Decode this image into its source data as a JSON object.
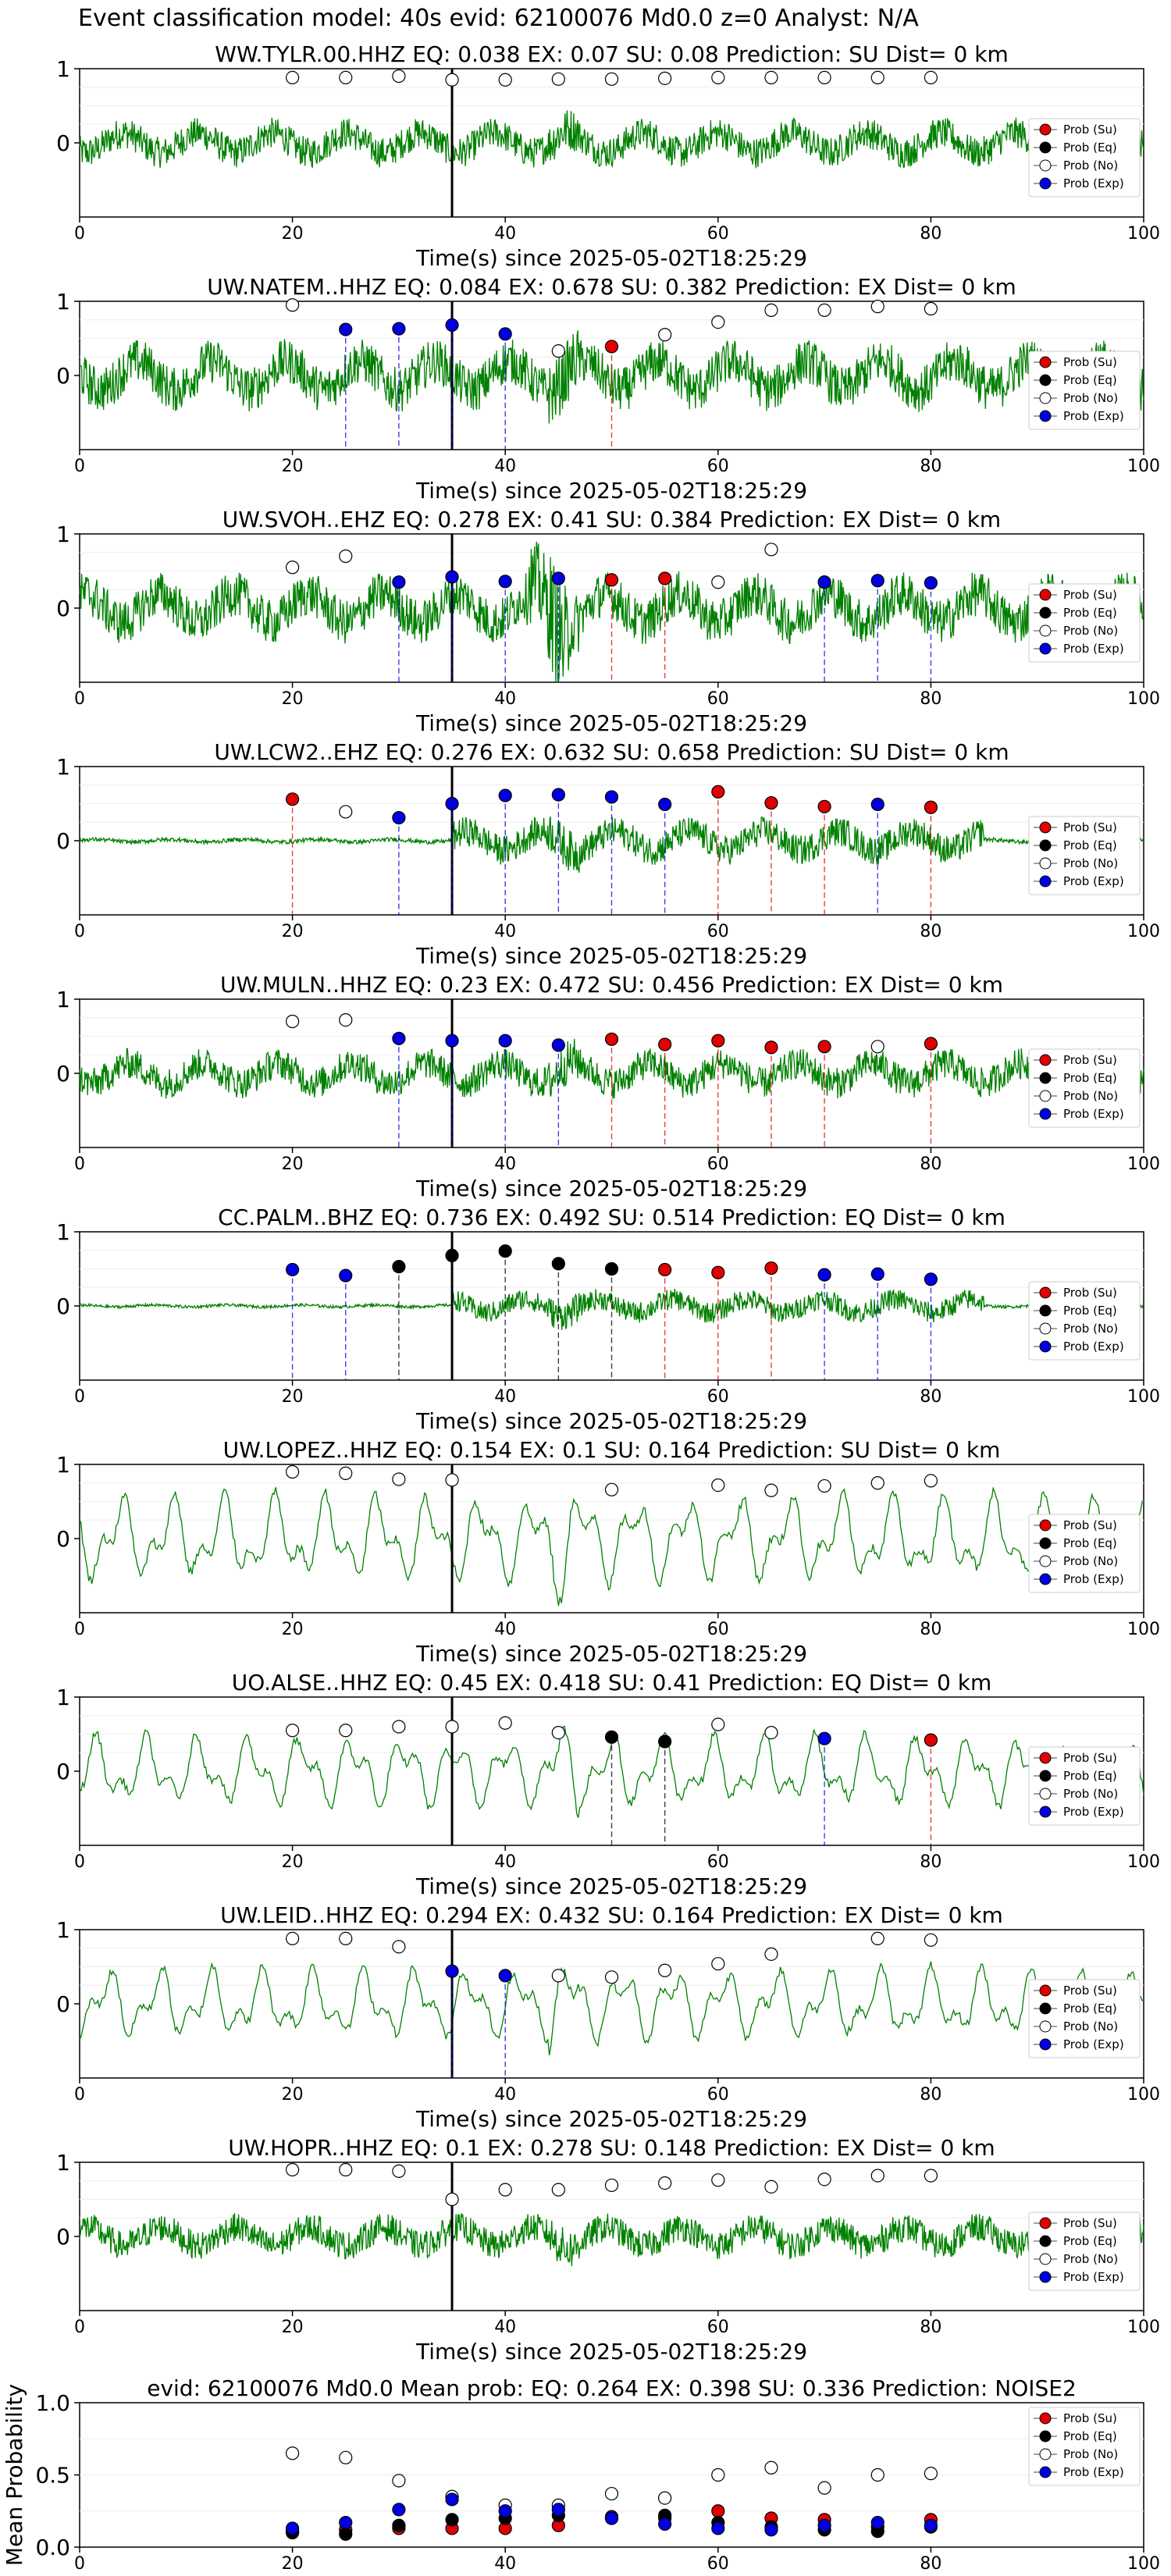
{
  "figure_title": "Event classification model: 40s evid: 62100076 Md0.0 z=0 Analyst: N/A",
  "legend": {
    "items": [
      {
        "label": "Prob (Su)",
        "color": "#e00000",
        "filled": true
      },
      {
        "label": "Prob (Eq)",
        "color": "#000000",
        "filled": true
      },
      {
        "label": "Prob (No)",
        "color": "#ffffff",
        "filled": false
      },
      {
        "label": "Prob (Exp)",
        "color": "#0000e0",
        "filled": true
      }
    ]
  },
  "colors": {
    "waveform": "#008000",
    "su": "#e00000",
    "eq": "#000000",
    "no": "#ffffff",
    "exp": "#0000e0",
    "origin_line": "#000000"
  },
  "chart_data": [
    {
      "type": "line",
      "title": "WW.TYLR.00.HHZ   EQ: 0.038  EX: 0.07  SU: 0.08   Prediction: SU    Dist= 0 km",
      "xlabel": "Time(s) since 2025-05-02T18:25:29",
      "xlim": [
        0,
        100
      ],
      "ylim": [
        -1,
        1
      ],
      "xticks": [
        0,
        20,
        40,
        60,
        80,
        100
      ],
      "yticks": [
        1,
        0
      ],
      "origin_time": 35,
      "waveform": {
        "amplitude": 0.38,
        "character": "broadband"
      },
      "points": [
        {
          "t": 20,
          "class": "no",
          "p": 0.88
        },
        {
          "t": 25,
          "class": "no",
          "p": 0.88
        },
        {
          "t": 30,
          "class": "no",
          "p": 0.9
        },
        {
          "t": 35,
          "class": "no",
          "p": 0.85
        },
        {
          "t": 40,
          "class": "no",
          "p": 0.85
        },
        {
          "t": 45,
          "class": "no",
          "p": 0.86
        },
        {
          "t": 50,
          "class": "no",
          "p": 0.86
        },
        {
          "t": 55,
          "class": "no",
          "p": 0.87
        },
        {
          "t": 60,
          "class": "no",
          "p": 0.88
        },
        {
          "t": 65,
          "class": "no",
          "p": 0.88
        },
        {
          "t": 70,
          "class": "no",
          "p": 0.88
        },
        {
          "t": 75,
          "class": "no",
          "p": 0.88
        },
        {
          "t": 80,
          "class": "no",
          "p": 0.88
        }
      ]
    },
    {
      "type": "line",
      "title": "UW.NATEM..HHZ   EQ: 0.084  EX: 0.678  SU: 0.382   Prediction: EX    Dist= 0 km",
      "xlabel": "Time(s) since 2025-05-02T18:25:29",
      "xlim": [
        0,
        100
      ],
      "ylim": [
        -1,
        1
      ],
      "xticks": [
        0,
        20,
        40,
        60,
        80,
        100
      ],
      "yticks": [
        1,
        0
      ],
      "origin_time": 35,
      "waveform": {
        "amplitude": 0.55,
        "character": "broadband"
      },
      "points": [
        {
          "t": 20,
          "class": "no",
          "p": 0.95
        },
        {
          "t": 25,
          "class": "exp",
          "p": 0.62
        },
        {
          "t": 30,
          "class": "exp",
          "p": 0.63
        },
        {
          "t": 35,
          "class": "exp",
          "p": 0.68
        },
        {
          "t": 40,
          "class": "exp",
          "p": 0.56
        },
        {
          "t": 45,
          "class": "no",
          "p": 0.33
        },
        {
          "t": 50,
          "class": "su",
          "p": 0.39
        },
        {
          "t": 55,
          "class": "no",
          "p": 0.55
        },
        {
          "t": 60,
          "class": "no",
          "p": 0.72
        },
        {
          "t": 65,
          "class": "no",
          "p": 0.88
        },
        {
          "t": 70,
          "class": "no",
          "p": 0.88
        },
        {
          "t": 75,
          "class": "no",
          "p": 0.93
        },
        {
          "t": 80,
          "class": "no",
          "p": 0.9
        }
      ]
    },
    {
      "type": "line",
      "title": "UW.SVOH..EHZ   EQ: 0.278  EX: 0.41  SU: 0.384   Prediction: EX    Dist= 0 km",
      "xlabel": "Time(s) since 2025-05-02T18:25:29",
      "xlim": [
        0,
        100
      ],
      "ylim": [
        -1,
        1
      ],
      "xticks": [
        0,
        20,
        40,
        60,
        80,
        100
      ],
      "yticks": [
        1,
        0
      ],
      "origin_time": 35,
      "waveform": {
        "amplitude": 0.55,
        "character": "spiky"
      },
      "points": [
        {
          "t": 20,
          "class": "no",
          "p": 0.55
        },
        {
          "t": 25,
          "class": "no",
          "p": 0.7
        },
        {
          "t": 30,
          "class": "exp",
          "p": 0.35
        },
        {
          "t": 35,
          "class": "exp",
          "p": 0.42
        },
        {
          "t": 40,
          "class": "exp",
          "p": 0.36
        },
        {
          "t": 45,
          "class": "exp",
          "p": 0.4
        },
        {
          "t": 50,
          "class": "su",
          "p": 0.38
        },
        {
          "t": 55,
          "class": "su",
          "p": 0.4
        },
        {
          "t": 60,
          "class": "no",
          "p": 0.35
        },
        {
          "t": 65,
          "class": "no",
          "p": 0.79
        },
        {
          "t": 70,
          "class": "exp",
          "p": 0.35
        },
        {
          "t": 75,
          "class": "exp",
          "p": 0.37
        },
        {
          "t": 80,
          "class": "exp",
          "p": 0.34
        }
      ]
    },
    {
      "type": "line",
      "title": "UW.LCW2..EHZ   EQ: 0.276  EX: 0.632  SU: 0.658   Prediction: SU    Dist= 0 km",
      "xlabel": "Time(s) since 2025-05-02T18:25:29",
      "xlim": [
        0,
        100
      ],
      "ylim": [
        -1,
        1
      ],
      "xticks": [
        0,
        20,
        40,
        60,
        80,
        100
      ],
      "yticks": [
        1,
        0
      ],
      "origin_time": 35,
      "waveform": {
        "amplitude": 0.14,
        "character": "quiet"
      },
      "points": [
        {
          "t": 20,
          "class": "su",
          "p": 0.56
        },
        {
          "t": 25,
          "class": "no",
          "p": 0.39
        },
        {
          "t": 30,
          "class": "exp",
          "p": 0.31
        },
        {
          "t": 35,
          "class": "exp",
          "p": 0.5
        },
        {
          "t": 40,
          "class": "exp",
          "p": 0.61
        },
        {
          "t": 45,
          "class": "exp",
          "p": 0.62
        },
        {
          "t": 50,
          "class": "exp",
          "p": 0.59
        },
        {
          "t": 55,
          "class": "exp",
          "p": 0.49
        },
        {
          "t": 60,
          "class": "su",
          "p": 0.66
        },
        {
          "t": 65,
          "class": "su",
          "p": 0.51
        },
        {
          "t": 70,
          "class": "su",
          "p": 0.46
        },
        {
          "t": 75,
          "class": "exp",
          "p": 0.49
        },
        {
          "t": 80,
          "class": "su",
          "p": 0.45
        }
      ]
    },
    {
      "type": "line",
      "title": "UW.MULN..HHZ   EQ: 0.23  EX: 0.472  SU: 0.456   Prediction: EX    Dist= 0 km",
      "xlabel": "Time(s) since 2025-05-02T18:25:29",
      "xlim": [
        0,
        100
      ],
      "ylim": [
        -1,
        1
      ],
      "xticks": [
        0,
        20,
        40,
        60,
        80,
        100
      ],
      "yticks": [
        1,
        0
      ],
      "origin_time": 35,
      "waveform": {
        "amplitude": 0.38,
        "character": "broadband"
      },
      "points": [
        {
          "t": 20,
          "class": "no",
          "p": 0.7
        },
        {
          "t": 25,
          "class": "no",
          "p": 0.72
        },
        {
          "t": 30,
          "class": "exp",
          "p": 0.47
        },
        {
          "t": 35,
          "class": "exp",
          "p": 0.44
        },
        {
          "t": 40,
          "class": "exp",
          "p": 0.44
        },
        {
          "t": 45,
          "class": "exp",
          "p": 0.38
        },
        {
          "t": 50,
          "class": "su",
          "p": 0.46
        },
        {
          "t": 55,
          "class": "su",
          "p": 0.39
        },
        {
          "t": 60,
          "class": "su",
          "p": 0.44
        },
        {
          "t": 65,
          "class": "su",
          "p": 0.35
        },
        {
          "t": 70,
          "class": "su",
          "p": 0.36
        },
        {
          "t": 75,
          "class": "no",
          "p": 0.36
        },
        {
          "t": 80,
          "class": "su",
          "p": 0.4
        }
      ]
    },
    {
      "type": "line",
      "title": "CC.PALM..BHZ   EQ: 0.736  EX: 0.492  SU: 0.514   Prediction: EQ    Dist= 0 km",
      "xlabel": "Time(s) since 2025-05-02T18:25:29",
      "xlim": [
        0,
        100
      ],
      "ylim": [
        -1,
        1
      ],
      "xticks": [
        0,
        20,
        40,
        60,
        80,
        100
      ],
      "yticks": [
        1,
        0
      ],
      "origin_time": 35,
      "waveform": {
        "amplitude": 0.1,
        "character": "quiet"
      },
      "points": [
        {
          "t": 20,
          "class": "exp",
          "p": 0.49
        },
        {
          "t": 25,
          "class": "exp",
          "p": 0.41
        },
        {
          "t": 30,
          "class": "eq",
          "p": 0.53
        },
        {
          "t": 35,
          "class": "eq",
          "p": 0.68
        },
        {
          "t": 40,
          "class": "eq",
          "p": 0.74
        },
        {
          "t": 45,
          "class": "eq",
          "p": 0.57
        },
        {
          "t": 50,
          "class": "eq",
          "p": 0.5
        },
        {
          "t": 55,
          "class": "su",
          "p": 0.49
        },
        {
          "t": 60,
          "class": "su",
          "p": 0.45
        },
        {
          "t": 65,
          "class": "su",
          "p": 0.51
        },
        {
          "t": 70,
          "class": "exp",
          "p": 0.42
        },
        {
          "t": 75,
          "class": "exp",
          "p": 0.43
        },
        {
          "t": 80,
          "class": "exp",
          "p": 0.36
        }
      ]
    },
    {
      "type": "line",
      "title": "UW.LOPEZ..HHZ   EQ: 0.154  EX: 0.1  SU: 0.164   Prediction: SU    Dist= 0 km",
      "xlabel": "Time(s) since 2025-05-02T18:25:29",
      "xlim": [
        0,
        100
      ],
      "ylim": [
        -1,
        1
      ],
      "xticks": [
        0,
        20,
        40,
        60,
        80,
        100
      ],
      "yticks": [
        1,
        0
      ],
      "origin_time": 35,
      "waveform": {
        "amplitude": 0.55,
        "character": "smooth"
      },
      "points": [
        {
          "t": 20,
          "class": "no",
          "p": 0.9
        },
        {
          "t": 25,
          "class": "no",
          "p": 0.88
        },
        {
          "t": 30,
          "class": "no",
          "p": 0.8
        },
        {
          "t": 35,
          "class": "no",
          "p": 0.79
        },
        {
          "t": 50,
          "class": "no",
          "p": 0.66
        },
        {
          "t": 60,
          "class": "no",
          "p": 0.72
        },
        {
          "t": 65,
          "class": "no",
          "p": 0.65
        },
        {
          "t": 70,
          "class": "no",
          "p": 0.71
        },
        {
          "t": 75,
          "class": "no",
          "p": 0.75
        },
        {
          "t": 80,
          "class": "no",
          "p": 0.78
        }
      ]
    },
    {
      "type": "line",
      "title": "UO.ALSE..HHZ   EQ: 0.45  EX: 0.418  SU: 0.41   Prediction: EQ    Dist= 0 km",
      "xlabel": "Time(s) since 2025-05-02T18:25:29",
      "xlim": [
        0,
        100
      ],
      "ylim": [
        -1,
        1
      ],
      "xticks": [
        0,
        20,
        40,
        60,
        80,
        100
      ],
      "yticks": [
        1,
        0
      ],
      "origin_time": 35,
      "waveform": {
        "amplitude": 0.45,
        "character": "smooth"
      },
      "points": [
        {
          "t": 20,
          "class": "no",
          "p": 0.55
        },
        {
          "t": 25,
          "class": "no",
          "p": 0.55
        },
        {
          "t": 30,
          "class": "no",
          "p": 0.6
        },
        {
          "t": 35,
          "class": "no",
          "p": 0.6
        },
        {
          "t": 40,
          "class": "no",
          "p": 0.65
        },
        {
          "t": 45,
          "class": "no",
          "p": 0.52
        },
        {
          "t": 50,
          "class": "eq",
          "p": 0.46
        },
        {
          "t": 55,
          "class": "eq",
          "p": 0.4
        },
        {
          "t": 60,
          "class": "no",
          "p": 0.63
        },
        {
          "t": 65,
          "class": "no",
          "p": 0.52
        },
        {
          "t": 70,
          "class": "exp",
          "p": 0.44
        },
        {
          "t": 80,
          "class": "su",
          "p": 0.42
        }
      ]
    },
    {
      "type": "line",
      "title": "UW.LEID..HHZ   EQ: 0.294  EX: 0.432  SU: 0.164   Prediction: EX    Dist= 0 km",
      "xlabel": "Time(s) since 2025-05-02T18:25:29",
      "xlim": [
        0,
        100
      ],
      "ylim": [
        -1,
        1
      ],
      "xticks": [
        0,
        20,
        40,
        60,
        80,
        100
      ],
      "yticks": [
        1,
        0
      ],
      "origin_time": 35,
      "waveform": {
        "amplitude": 0.45,
        "character": "smooth"
      },
      "points": [
        {
          "t": 20,
          "class": "no",
          "p": 0.88
        },
        {
          "t": 25,
          "class": "no",
          "p": 0.88
        },
        {
          "t": 30,
          "class": "no",
          "p": 0.77
        },
        {
          "t": 35,
          "class": "exp",
          "p": 0.44
        },
        {
          "t": 40,
          "class": "exp",
          "p": 0.38
        },
        {
          "t": 45,
          "class": "no",
          "p": 0.38
        },
        {
          "t": 50,
          "class": "no",
          "p": 0.36
        },
        {
          "t": 55,
          "class": "no",
          "p": 0.45
        },
        {
          "t": 60,
          "class": "no",
          "p": 0.54
        },
        {
          "t": 65,
          "class": "no",
          "p": 0.67
        },
        {
          "t": 75,
          "class": "no",
          "p": 0.88
        },
        {
          "t": 80,
          "class": "no",
          "p": 0.86
        }
      ]
    },
    {
      "type": "line",
      "title": "UW.HOPR..HHZ   EQ: 0.1  EX: 0.278  SU: 0.148   Prediction: EX    Dist= 0 km",
      "xlabel": "Time(s) since 2025-05-02T18:25:29",
      "xlim": [
        0,
        100
      ],
      "ylim": [
        -1,
        1
      ],
      "xticks": [
        0,
        20,
        40,
        60,
        80,
        100
      ],
      "yticks": [
        1,
        0
      ],
      "origin_time": 35,
      "waveform": {
        "amplitude": 0.35,
        "character": "broadband"
      },
      "points": [
        {
          "t": 20,
          "class": "no",
          "p": 0.9
        },
        {
          "t": 25,
          "class": "no",
          "p": 0.9
        },
        {
          "t": 30,
          "class": "no",
          "p": 0.88
        },
        {
          "t": 35,
          "class": "no",
          "p": 0.5
        },
        {
          "t": 40,
          "class": "no",
          "p": 0.63
        },
        {
          "t": 45,
          "class": "no",
          "p": 0.63
        },
        {
          "t": 50,
          "class": "no",
          "p": 0.69
        },
        {
          "t": 55,
          "class": "no",
          "p": 0.72
        },
        {
          "t": 60,
          "class": "no",
          "p": 0.76
        },
        {
          "t": 65,
          "class": "no",
          "p": 0.67
        },
        {
          "t": 70,
          "class": "no",
          "p": 0.77
        },
        {
          "t": 75,
          "class": "no",
          "p": 0.82
        },
        {
          "t": 80,
          "class": "no",
          "p": 0.82
        }
      ]
    },
    {
      "type": "scatter",
      "title": "evid: 62100076  Md0.0   Mean prob:   EQ: 0.264  EX: 0.398  SU: 0.336   Prediction: NOISE2",
      "ylabel": "Mean Probability",
      "xlim": [
        0,
        100
      ],
      "ylim": [
        0,
        1
      ],
      "xticks": [
        0,
        20,
        40,
        60,
        80,
        100
      ],
      "yticks": [
        1.0,
        0.5,
        0.0
      ],
      "x": [
        20,
        25,
        30,
        35,
        40,
        45,
        50,
        55,
        60,
        65,
        70,
        75,
        80
      ],
      "series": [
        {
          "name": "Prob (Su)",
          "class": "su",
          "values": [
            0.11,
            0.12,
            0.13,
            0.13,
            0.13,
            0.15,
            0.21,
            0.2,
            0.25,
            0.2,
            0.19,
            0.14,
            0.19
          ]
        },
        {
          "name": "Prob (Eq)",
          "class": "eq",
          "values": [
            0.1,
            0.09,
            0.15,
            0.19,
            0.2,
            0.22,
            0.2,
            0.22,
            0.17,
            0.14,
            0.12,
            0.11,
            0.14
          ]
        },
        {
          "name": "Prob (No)",
          "class": "no",
          "values": [
            0.65,
            0.62,
            0.46,
            0.35,
            0.29,
            0.29,
            0.37,
            0.34,
            0.5,
            0.55,
            0.41,
            0.5,
            0.51
          ]
        },
        {
          "name": "Prob (Exp)",
          "class": "exp",
          "values": [
            0.13,
            0.17,
            0.26,
            0.33,
            0.25,
            0.26,
            0.2,
            0.16,
            0.13,
            0.12,
            0.15,
            0.17,
            0.15
          ]
        }
      ]
    }
  ]
}
